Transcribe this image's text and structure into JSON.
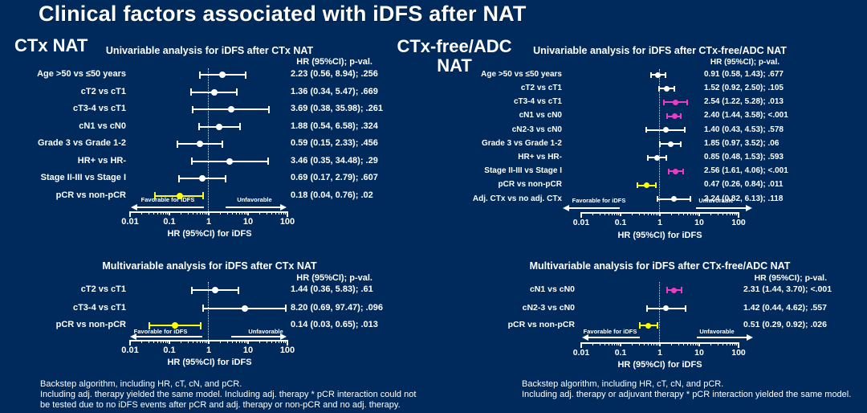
{
  "title": "Clinical factors associated with iDFS after NAT",
  "section_headers": {
    "left": "CTx NAT",
    "right": [
      "CTx-free/ADC",
      "NAT"
    ]
  },
  "colors": {
    "background": "#002a5c",
    "text": "#ffffff",
    "nonsignificant": "#ffffff",
    "significant_favorable": "#ffff00",
    "significant_unfavorable": "#ee3cc2",
    "reference_line": "#d9e1ef"
  },
  "chart_data": [
    {
      "id": "univariable-ctx-nat",
      "type": "forest",
      "title": "Univariable analysis for iDFS after CTx NAT",
      "column_header": "HR (95%CI); p-val.",
      "axis": {
        "scale": "log",
        "min": 0.01,
        "max": 100,
        "ticks": [
          0.01,
          0.1,
          1,
          10,
          100
        ],
        "tick_labels": [
          "0.01",
          "0.1",
          "1",
          "10",
          "100"
        ],
        "label": "HR (95%CI) for iDFS",
        "reference_line": 1
      },
      "direction_labels": {
        "favorable": "Favorable for iDFS",
        "unfavorable": "Unfavorable"
      },
      "rows": [
        {
          "label": "Age >50 vs ≤50 years",
          "hr": 2.23,
          "ci_low": 0.56,
          "ci_high": 8.94,
          "p": ".256",
          "text": "2.23 (0.56, 8.94); .256",
          "color": "white"
        },
        {
          "label": "cT2 vs cT1",
          "hr": 1.36,
          "ci_low": 0.34,
          "ci_high": 5.47,
          "p": ".669",
          "text": "1.36 (0.34, 5.47); .669",
          "color": "white"
        },
        {
          "label": "cT3-4 vs cT1",
          "hr": 3.69,
          "ci_low": 0.38,
          "ci_high": 35.98,
          "p": ".261",
          "text": "3.69 (0.38, 35.98); .261",
          "color": "white"
        },
        {
          "label": "cN1 vs cN0",
          "hr": 1.88,
          "ci_low": 0.54,
          "ci_high": 6.58,
          "p": ".324",
          "text": "1.88 (0.54, 6.58); .324",
          "color": "white"
        },
        {
          "label": "Grade 3 vs Grade 1-2",
          "hr": 0.59,
          "ci_low": 0.15,
          "ci_high": 2.33,
          "p": ".456",
          "text": "0.59 (0.15, 2.33); .456",
          "color": "white"
        },
        {
          "label": "HR+ vs HR-",
          "hr": 3.46,
          "ci_low": 0.35,
          "ci_high": 34.48,
          "p": ".29",
          "text": "3.46 (0.35, 34.48); .29",
          "color": "white"
        },
        {
          "label": "Stage II-III vs Stage I",
          "hr": 0.69,
          "ci_low": 0.17,
          "ci_high": 2.79,
          "p": ".607",
          "text": "0.69 (0.17, 2.79); .607",
          "color": "white"
        },
        {
          "label": "pCR vs non-pCR",
          "hr": 0.18,
          "ci_low": 0.04,
          "ci_high": 0.76,
          "p": ".02",
          "text": "0.18 (0.04, 0.76); .02",
          "color": "yellow"
        }
      ]
    },
    {
      "id": "univariable-ctx-free-adc-nat",
      "type": "forest",
      "title": "Univariable analysis for iDFS after CTx-free/ADC NAT",
      "column_header": "HR (95%CI); p-val.",
      "axis": {
        "scale": "log",
        "min": 0.01,
        "max": 100,
        "ticks": [
          0.01,
          0.1,
          1,
          10,
          100
        ],
        "tick_labels": [
          "0.01",
          "0.1",
          "1",
          "10",
          "100"
        ],
        "label": "HR (95%CI) for iDFS",
        "reference_line": 1
      },
      "direction_labels": {
        "favorable": "Favorable for iDFS",
        "unfavorable": "Unfavorable"
      },
      "rows": [
        {
          "label": "Age >50 vs ≤50 years",
          "hr": 0.91,
          "ci_low": 0.58,
          "ci_high": 1.43,
          "p": ".677",
          "text": "0.91 (0.58, 1.43); .677",
          "color": "white"
        },
        {
          "label": "cT2 vs cT1",
          "hr": 1.52,
          "ci_low": 0.92,
          "ci_high": 2.5,
          "p": ".105",
          "text": "1.52 (0.92, 2.50); .105",
          "color": "white"
        },
        {
          "label": "cT3-4 vs cT1",
          "hr": 2.54,
          "ci_low": 1.22,
          "ci_high": 5.28,
          "p": ".013",
          "text": "2.54 (1.22, 5.28); .013",
          "color": "magenta"
        },
        {
          "label": "cN1 vs cN0",
          "hr": 2.4,
          "ci_low": 1.44,
          "ci_high": 3.58,
          "p": "<.001",
          "text": "2.40 (1.44, 3.58); <.001",
          "color": "magenta"
        },
        {
          "label": "cN2-3 vs cN0",
          "hr": 1.4,
          "ci_low": 0.43,
          "ci_high": 4.53,
          "p": ".578",
          "text": "1.40 (0.43, 4.53); .578",
          "color": "white"
        },
        {
          "label": "Grade 3 vs Grade 1-2",
          "hr": 1.85,
          "ci_low": 0.97,
          "ci_high": 3.52,
          "p": ".06",
          "text": "1.85 (0.97, 3.52); .06",
          "color": "white"
        },
        {
          "label": "HR+ vs HR-",
          "hr": 0.85,
          "ci_low": 0.48,
          "ci_high": 1.53,
          "p": ".593",
          "text": "0.85 (0.48, 1.53); .593",
          "color": "white"
        },
        {
          "label": "Stage II-III vs Stage I",
          "hr": 2.56,
          "ci_low": 1.61,
          "ci_high": 4.06,
          "p": "<.001",
          "text": "2.56 (1.61, 4.06); <.001",
          "color": "magenta"
        },
        {
          "label": "pCR vs non-pCR",
          "hr": 0.47,
          "ci_low": 0.26,
          "ci_high": 0.84,
          "p": ".011",
          "text": "0.47 (0.26, 0.84); .011",
          "color": "yellow"
        },
        {
          "label": "Adj. CTx vs no adj. CTx",
          "hr": 2.24,
          "ci_low": 0.82,
          "ci_high": 6.13,
          "p": ".118",
          "text": "2.24 (0.82, 6.13); .118",
          "color": "white"
        }
      ]
    },
    {
      "id": "multivariable-ctx-nat",
      "type": "forest",
      "title": "Multivariable analysis for iDFS after CTx NAT",
      "column_header": "HR (95%CI); p-val.",
      "axis": {
        "scale": "log",
        "min": 0.01,
        "max": 100,
        "ticks": [
          0.01,
          0.1,
          1,
          10,
          100
        ],
        "tick_labels": [
          "0.01",
          "0.1",
          "1",
          "10",
          "100"
        ],
        "label": "HR (95%CI) for iDFS",
        "reference_line": 1
      },
      "direction_labels": {
        "favorable": "Favorable for iDFS",
        "unfavorable": "Unfavorable"
      },
      "rows": [
        {
          "label": "cT2 vs cT1",
          "hr": 1.44,
          "ci_low": 0.36,
          "ci_high": 5.83,
          "p": ".61",
          "text": "1.44 (0.36, 5.83); .61",
          "color": "white"
        },
        {
          "label": "cT3-4 vs cT1",
          "hr": 8.2,
          "ci_low": 0.69,
          "ci_high": 97.47,
          "p": ".096",
          "text": "8.20 (0.69, 97.47); .096",
          "color": "white"
        },
        {
          "label": "pCR vs non-pCR",
          "hr": 0.14,
          "ci_low": 0.03,
          "ci_high": 0.65,
          "p": ".013",
          "text": "0.14 (0.03, 0.65); .013",
          "color": "yellow"
        }
      ]
    },
    {
      "id": "multivariable-ctx-free-adc-nat",
      "type": "forest",
      "title": "Multivariable analysis for iDFS after CTx-free/ADC NAT",
      "column_header": "HR (95%CI); p-val.",
      "axis": {
        "scale": "log",
        "min": 0.01,
        "max": 100,
        "ticks": [
          0.01,
          0.1,
          1,
          10,
          100
        ],
        "tick_labels": [
          "0.01",
          "0.1",
          "1",
          "10",
          "100"
        ],
        "label": "HR (95%CI) for iDFS",
        "reference_line": 1
      },
      "direction_labels": {
        "favorable": "Favorable for iDFS",
        "unfavorable": "Unfavorable"
      },
      "rows": [
        {
          "label": "cN1 vs cN0",
          "hr": 2.31,
          "ci_low": 1.44,
          "ci_high": 3.7,
          "p": "<.001",
          "text": "2.31 (1.44, 3.70); <.001",
          "color": "magenta"
        },
        {
          "label": "cN2-3 vs cN0",
          "hr": 1.42,
          "ci_low": 0.44,
          "ci_high": 4.62,
          "p": ".557",
          "text": "1.42 (0.44, 4.62); .557",
          "color": "white"
        },
        {
          "label": "pCR vs non-pCR",
          "hr": 0.51,
          "ci_low": 0.29,
          "ci_high": 0.92,
          "p": ".026",
          "text": "0.51 (0.29, 0.92); .026",
          "color": "yellow"
        }
      ]
    }
  ],
  "footnotes": {
    "left": [
      "Backstep algorithm, including HR, cT, cN, and pCR.",
      "Including adj. therapy yielded the same model. Including adj. therapy * pCR interaction could not",
      "be tested due to no iDFS events after pCR and adj. therapy or non-pCR and no adj. therapy."
    ],
    "right": [
      "Backstep algorithm, including HR, cT, cN, and pCR.",
      "Including adj. therapy or adjuvant therapy * pCR interaction yielded the same model."
    ]
  }
}
